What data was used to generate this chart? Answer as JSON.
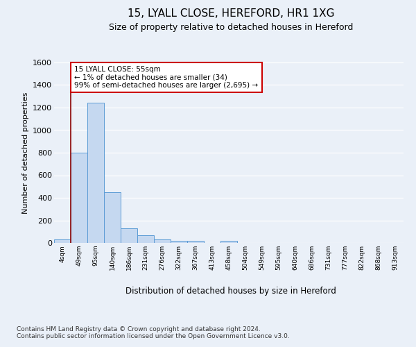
{
  "title1": "15, LYALL CLOSE, HEREFORD, HR1 1XG",
  "title2": "Size of property relative to detached houses in Hereford",
  "xlabel": "Distribution of detached houses by size in Hereford",
  "ylabel": "Number of detached properties",
  "bin_labels": [
    "4sqm",
    "49sqm",
    "95sqm",
    "140sqm",
    "186sqm",
    "231sqm",
    "276sqm",
    "322sqm",
    "367sqm",
    "413sqm",
    "458sqm",
    "504sqm",
    "549sqm",
    "595sqm",
    "640sqm",
    "686sqm",
    "731sqm",
    "777sqm",
    "822sqm",
    "868sqm",
    "913sqm"
  ],
  "bar_heights": [
    30,
    800,
    1240,
    450,
    130,
    65,
    28,
    20,
    18,
    0,
    18,
    0,
    0,
    0,
    0,
    0,
    0,
    0,
    0,
    0,
    0
  ],
  "bar_color": "#c5d8f0",
  "bar_edge_color": "#5b9bd5",
  "vline_pos": 0.52,
  "vline_color": "#8b0000",
  "annotation_text": "15 LYALL CLOSE: 55sqm\n← 1% of detached houses are smaller (34)\n99% of semi-detached houses are larger (2,695) →",
  "annotation_box_color": "white",
  "annotation_box_edge": "#cc0000",
  "ylim": [
    0,
    1600
  ],
  "yticks": [
    0,
    200,
    400,
    600,
    800,
    1000,
    1200,
    1400,
    1600
  ],
  "footer_text": "Contains HM Land Registry data © Crown copyright and database right 2024.\nContains public sector information licensed under the Open Government Licence v3.0.",
  "fig_facecolor": "#eaf0f8",
  "plot_facecolor": "#eaf0f8"
}
